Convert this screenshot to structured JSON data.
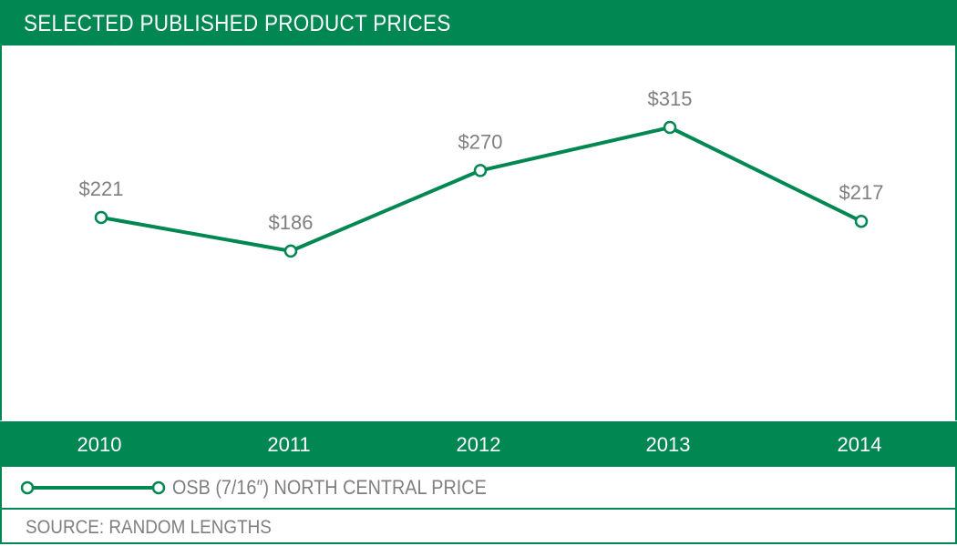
{
  "chart_data": {
    "type": "line",
    "title": "SELECTED PUBLISHED PRODUCT PRICES",
    "categories": [
      "2010",
      "2011",
      "2012",
      "2013",
      "2014"
    ],
    "series": [
      {
        "name": "OSB (7/16″) NORTH CENTRAL PRICE",
        "values": [
          221,
          186,
          270,
          315,
          217
        ],
        "labels": [
          "$221",
          "$186",
          "$270",
          "$315",
          "$217"
        ],
        "color": "#008752"
      }
    ],
    "xlabel": "",
    "ylabel": "",
    "grid": false,
    "legend_placement": "bottom",
    "source": "SOURCE: RANDOM LENGTHS"
  },
  "colors": {
    "accent": "#008752",
    "label_gray": "#7f7f7f"
  }
}
